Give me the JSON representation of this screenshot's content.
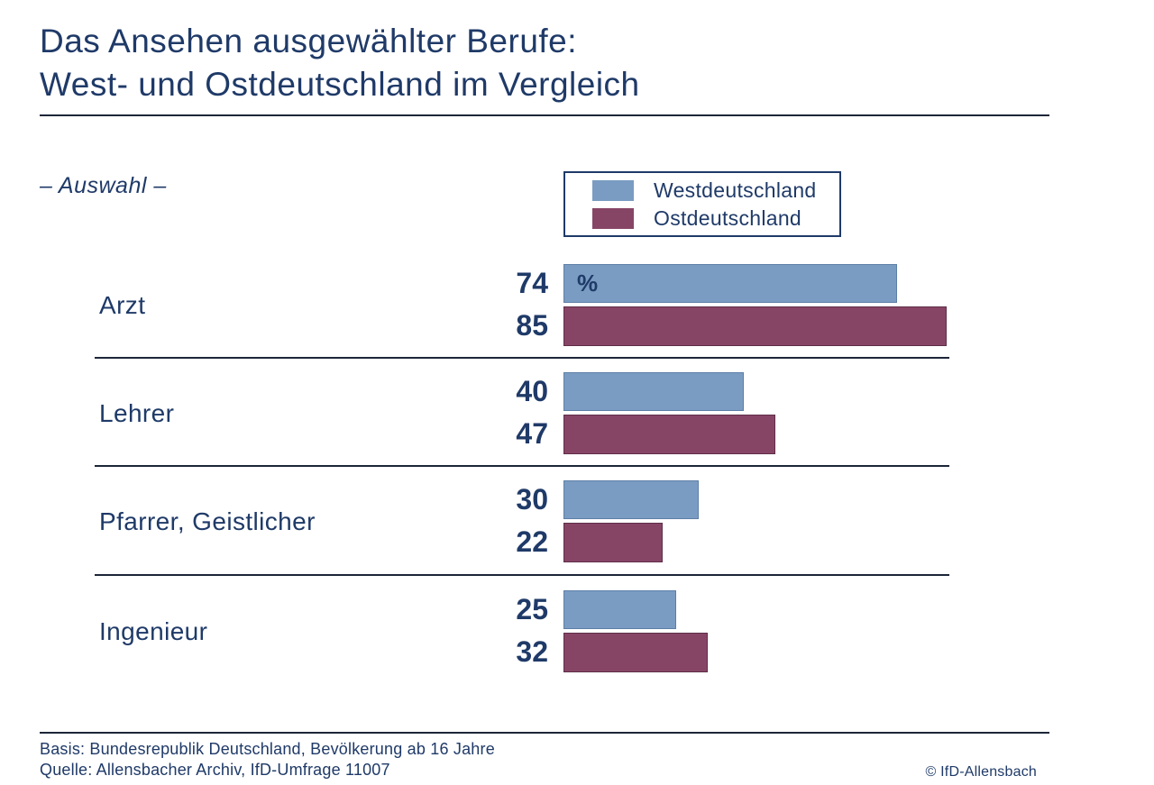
{
  "title": {
    "line1": "Das Ansehen ausgewählter Berufe:",
    "line2": "West- und Ostdeutschland im Vergleich"
  },
  "subtitle": "– Auswahl –",
  "unit_label": "%",
  "legend": {
    "items": [
      {
        "label": "Westdeutschland",
        "color": "#7A9CC2"
      },
      {
        "label": "Ostdeutschland",
        "color": "#874566"
      }
    ]
  },
  "chart_data": {
    "type": "bar",
    "orientation": "horizontal",
    "title": "Das Ansehen ausgewählter Berufe: West- und Ostdeutschland im Vergleich",
    "categories": [
      "Arzt",
      "Lehrer",
      "Pfarrer, Geistlicher",
      "Ingenieur"
    ],
    "series": [
      {
        "name": "Westdeutschland",
        "color": "#7A9CC2",
        "values": [
          74,
          40,
          30,
          25
        ]
      },
      {
        "name": "Ostdeutschland",
        "color": "#874566",
        "values": [
          85,
          47,
          22,
          32
        ]
      }
    ],
    "value_unit": "%",
    "xlim": [
      0,
      100
    ],
    "grid": false,
    "legend_position": "top-center",
    "value_labels": "left-of-bars"
  },
  "footer": {
    "basis": "Basis: Bundesrepublik Deutschland, Bevölkerung ab 16 Jahre",
    "quelle": "Quelle: Allensbacher Archiv, IfD-Umfrage 11007",
    "copyright": "© IfD-Allensbach"
  },
  "colors": {
    "accent_navy": "#1F3A68",
    "west_blue": "#7A9CC2",
    "east_maroon": "#874566",
    "rule": "#1c2638"
  }
}
